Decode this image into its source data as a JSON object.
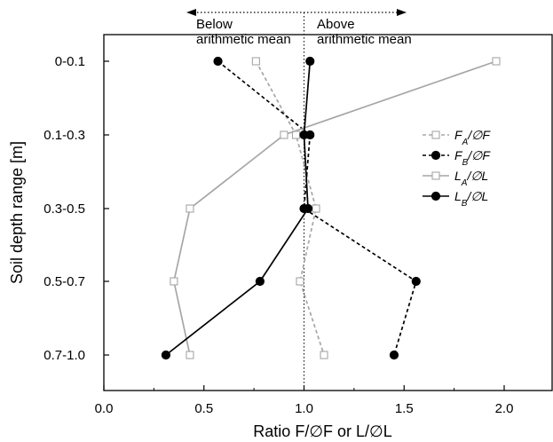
{
  "chart_data": {
    "type": "line",
    "title": "",
    "xlabel": "Ratio F/∅F or L/∅L",
    "ylabel": "Soil depth range [m]",
    "xlim": [
      0.0,
      2.25
    ],
    "x_ticks": [
      0.0,
      0.5,
      1.0,
      1.5,
      2.0
    ],
    "x_tick_labels": [
      "0.0",
      "0.5",
      "1.0",
      "1.5",
      "2.0"
    ],
    "categories": [
      "0-0.1",
      "0.1-0.3",
      "0.3-0.5",
      "0.5-0.7",
      "0.7-1.0"
    ],
    "grid": false,
    "legend_position": "right",
    "reference_line": 1.0,
    "annotations": {
      "below": [
        "Below",
        "arithmetic mean"
      ],
      "above": [
        "Above",
        "arithmetic mean"
      ]
    },
    "series": [
      {
        "name": "F_A/∅F",
        "legend_main": "F",
        "legend_sub": "A",
        "legend_tail": "/∅F",
        "line_style": "dashed",
        "marker": "open-square",
        "color": "#a6a6a6",
        "values": [
          0.76,
          0.96,
          1.06,
          0.98,
          1.1
        ]
      },
      {
        "name": "F_B/∅F",
        "legend_main": "F",
        "legend_sub": "B",
        "legend_tail": "/∅F",
        "line_style": "dashed",
        "marker": "filled-circle",
        "color": "#000000",
        "values": [
          0.57,
          1.03,
          1.0,
          1.56,
          1.45
        ]
      },
      {
        "name": "L_A/∅L",
        "legend_main": "L",
        "legend_sub": "A",
        "legend_tail": "/∅L",
        "line_style": "solid",
        "marker": "open-square",
        "color": "#a6a6a6",
        "values": [
          1.96,
          0.9,
          0.43,
          0.35,
          0.43
        ]
      },
      {
        "name": "L_B/∅L",
        "legend_main": "L",
        "legend_sub": "B",
        "legend_tail": "/∅L",
        "line_style": "solid",
        "marker": "filled-circle",
        "color": "#000000",
        "values": [
          1.03,
          1.0,
          1.02,
          0.78,
          0.31
        ]
      }
    ]
  }
}
